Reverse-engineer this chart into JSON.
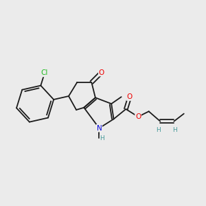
{
  "bg_color": "#ebebeb",
  "bond_color": "#1a1a1a",
  "atom_colors": {
    "O": "#ee0000",
    "N": "#0000dd",
    "Cl": "#22bb22",
    "H": "#449999",
    "C": "#1a1a1a"
  },
  "figsize": [
    3.0,
    3.0
  ],
  "dpi": 100,
  "lw": 1.3,
  "fsm": 7.5,
  "fsh": 6.5
}
